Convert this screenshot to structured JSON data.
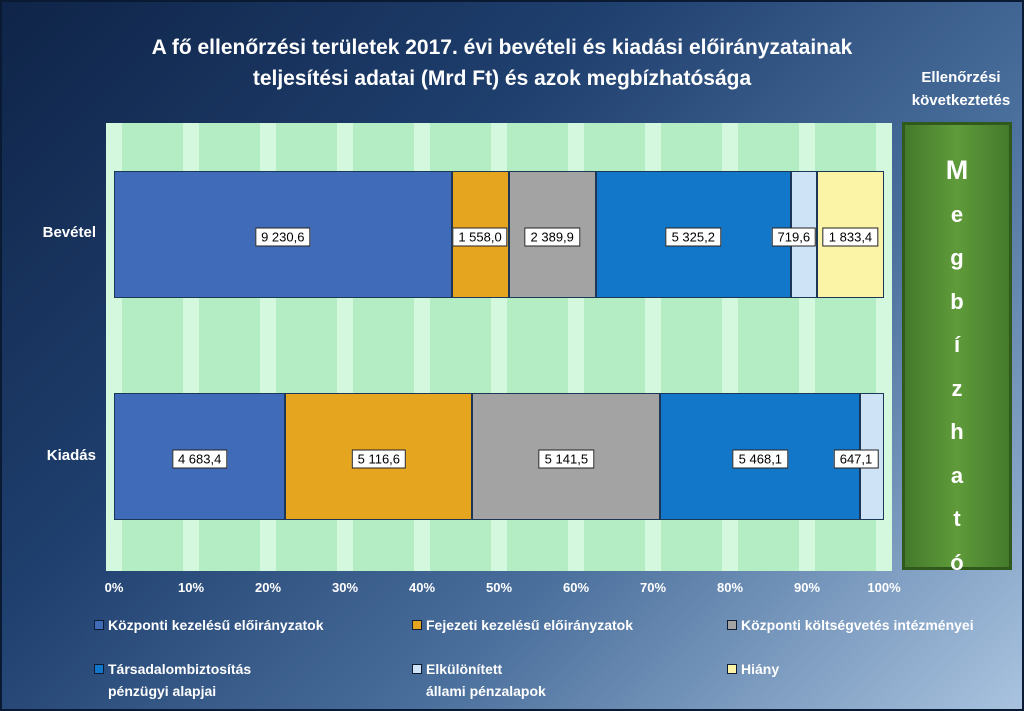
{
  "chart_data": {
    "type": "bar",
    "orientation": "horizontal",
    "stacked": "percent",
    "title": "A fő ellenőrzési területek  2017. évi bevételi  és kiadási előirányzatainak teljesítési adatai (Mrd Ft) és azok megbízhatósága",
    "title_lines": [
      "A fő ellenőrzési területek  2017. évi bevételi  és kiadási előirányzatainak",
      "teljesítési adatai (Mrd Ft) és azok megbízhatósága"
    ],
    "categories": [
      "Bevétel",
      "Kiadás"
    ],
    "x_ticks": [
      "0%",
      "10%",
      "20%",
      "30%",
      "40%",
      "50%",
      "60%",
      "70%",
      "80%",
      "90%",
      "100%"
    ],
    "xlim": [
      0,
      100
    ],
    "series": [
      {
        "name": "Központi kezelésű előirányzatok",
        "color": "#3f6bb8",
        "values": [
          9230.6,
          4683.4
        ],
        "labels": [
          "9 230,6",
          "4 683,4"
        ]
      },
      {
        "name": "Fejezeti kezelésű előirányzatok",
        "color": "#e5a51e",
        "values": [
          1558.0,
          5116.6
        ],
        "labels": [
          "1 558,0",
          "5 116,6"
        ]
      },
      {
        "name": "Központi költségvetés intézményei",
        "color": "#a3a3a3",
        "values": [
          2389.9,
          5141.5
        ],
        "labels": [
          "2 389,9",
          "5 141,5"
        ]
      },
      {
        "name": "Társadalombiztosítás pénzügyi alapjai",
        "color": "#1377c9",
        "values": [
          5325.2,
          5468.1
        ],
        "labels": [
          "5 325,2",
          "5 468,1"
        ]
      },
      {
        "name": "Elkülönített állami pénzalapok",
        "color": "#cfe3f7",
        "values": [
          719.6,
          647.1
        ],
        "labels": [
          "719,6",
          "647,1"
        ]
      },
      {
        "name": "Hiány",
        "color": "#fbf3a6",
        "values": [
          1833.4,
          null
        ],
        "labels": [
          "1 833,4",
          ""
        ]
      }
    ]
  },
  "legend": [
    {
      "lines": [
        "Központi kezelésű előirányzatok"
      ],
      "color": "#3f6bb8"
    },
    {
      "lines": [
        "Fejezeti kezelésű előirányzatok"
      ],
      "color": "#e5a51e"
    },
    {
      "lines": [
        "Központi költségvetés intézményei"
      ],
      "color": "#a3a3a3"
    },
    {
      "lines": [
        "Társadalombiztosítás",
        "pénzügyi alapjai"
      ],
      "color": "#1377c9"
    },
    {
      "lines": [
        "Elkülönített",
        "állami pénzalapok"
      ],
      "color": "#cfe3f7"
    },
    {
      "lines": [
        "Hiány"
      ],
      "color": "#fbf3a6"
    }
  ],
  "conclusion": {
    "title_lines": [
      "Ellenőrzési",
      "következtetés"
    ],
    "letters": [
      "M",
      "e",
      "g",
      "b",
      "í",
      "z",
      "h",
      "a",
      "t",
      "ó"
    ]
  }
}
